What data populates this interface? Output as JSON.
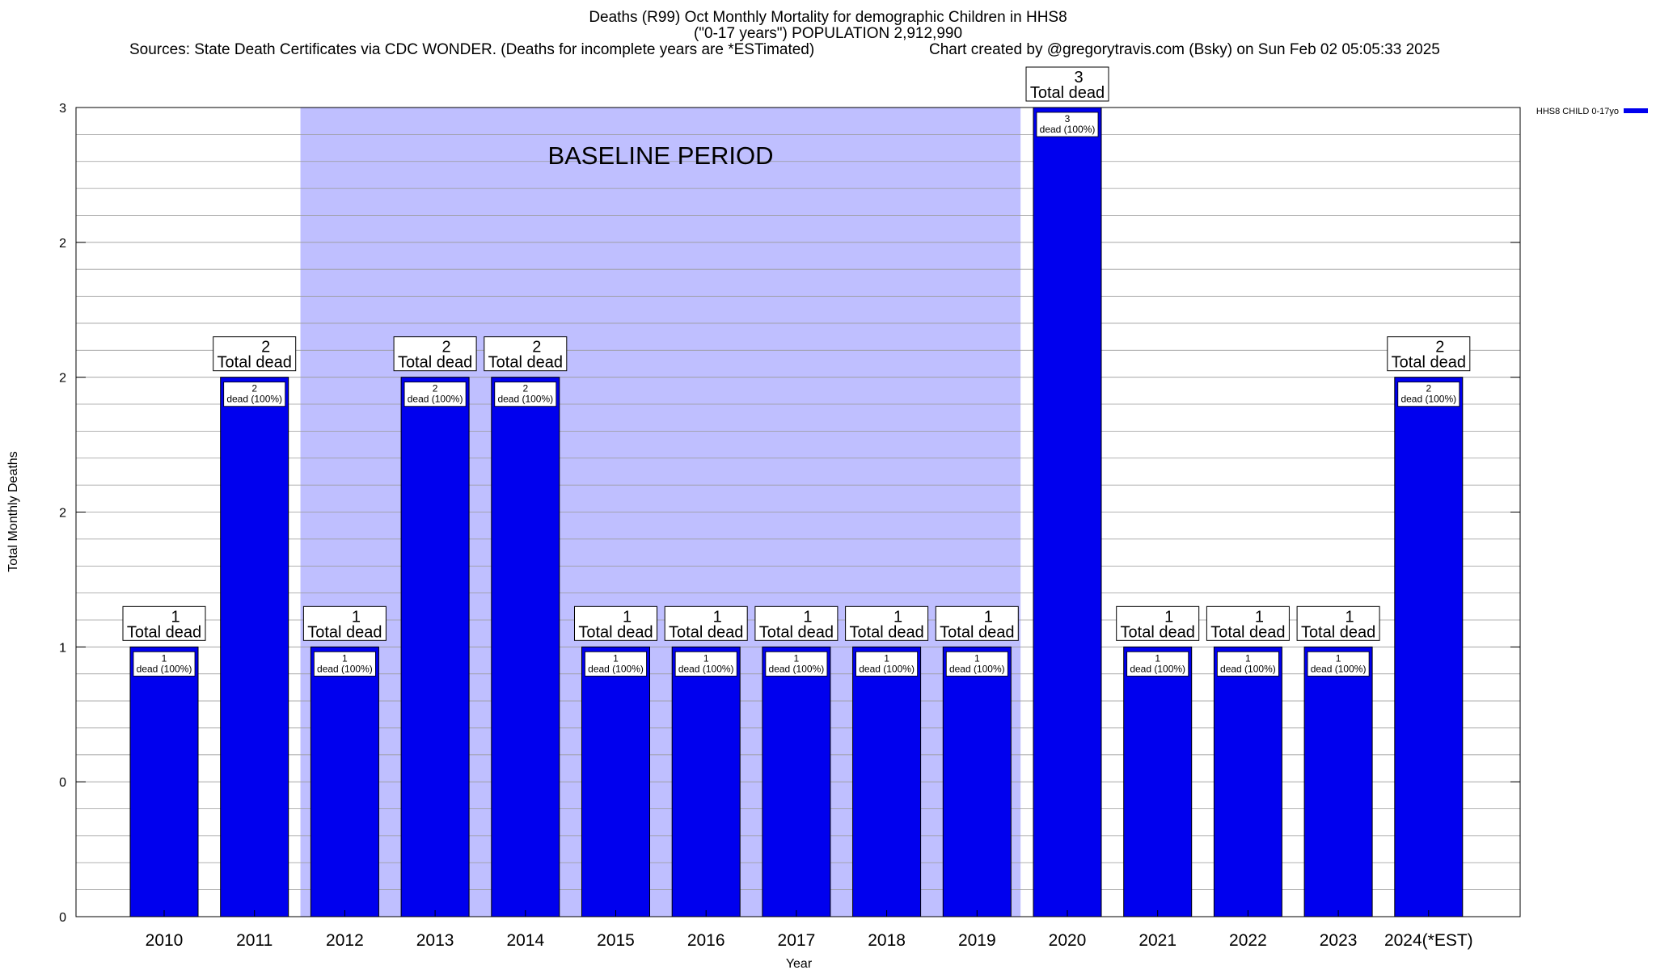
{
  "title_lines": {
    "line1": "Deaths (R99) Oct Monthly Mortality for demographic Children in HHS8",
    "line2": "(\"0-17 years\") POPULATION 2,912,990",
    "sources": "Sources: State Death Certificates via CDC WONDER. (Deaths for incomplete years are *ESTimated)",
    "credit": "Chart created by @gregorytravis.com (Bsky) on Sun Feb 02 05:05:33 2025"
  },
  "chart_data": {
    "type": "bar",
    "categories": [
      "2010",
      "2011",
      "2012",
      "2013",
      "2014",
      "2015",
      "2016",
      "2017",
      "2018",
      "2019",
      "2020",
      "2021",
      "2022",
      "2023",
      "2024(*EST)"
    ],
    "series": [
      {
        "name": "HHS8 CHILD 0-17yo",
        "values": [
          1,
          2,
          1,
          2,
          2,
          1,
          1,
          1,
          1,
          1,
          3,
          1,
          1,
          1,
          2
        ],
        "color": "#0000ee"
      }
    ],
    "top_labels": {
      "numbers": [
        "1",
        "2",
        "1",
        "2",
        "2",
        "1",
        "1",
        "1",
        "1",
        "1",
        "3",
        "1",
        "1",
        "1",
        "2"
      ],
      "text": "Total dead"
    },
    "inner_labels": {
      "numbers": [
        "1",
        "2",
        "1",
        "2",
        "2",
        "1",
        "1",
        "1",
        "1",
        "1",
        "3",
        "1",
        "1",
        "1",
        "2"
      ],
      "text": "dead (100%)"
    },
    "xlabel": "Year",
    "ylabel": "Total Monthly Deaths",
    "ylim": [
      0,
      3
    ],
    "y_tick_values": [
      0,
      0.5,
      1,
      1.5,
      2,
      2.5,
      3
    ],
    "y_tick_labels": [
      "0",
      "0",
      "1",
      "2",
      "2",
      "2",
      "3"
    ],
    "grid": true,
    "legend_position": "top-right",
    "annotation": {
      "text": "BASELINE PERIOD",
      "x_start_category": "2012",
      "x_end_category": "2019",
      "fill_color": "#bfbfff"
    }
  }
}
